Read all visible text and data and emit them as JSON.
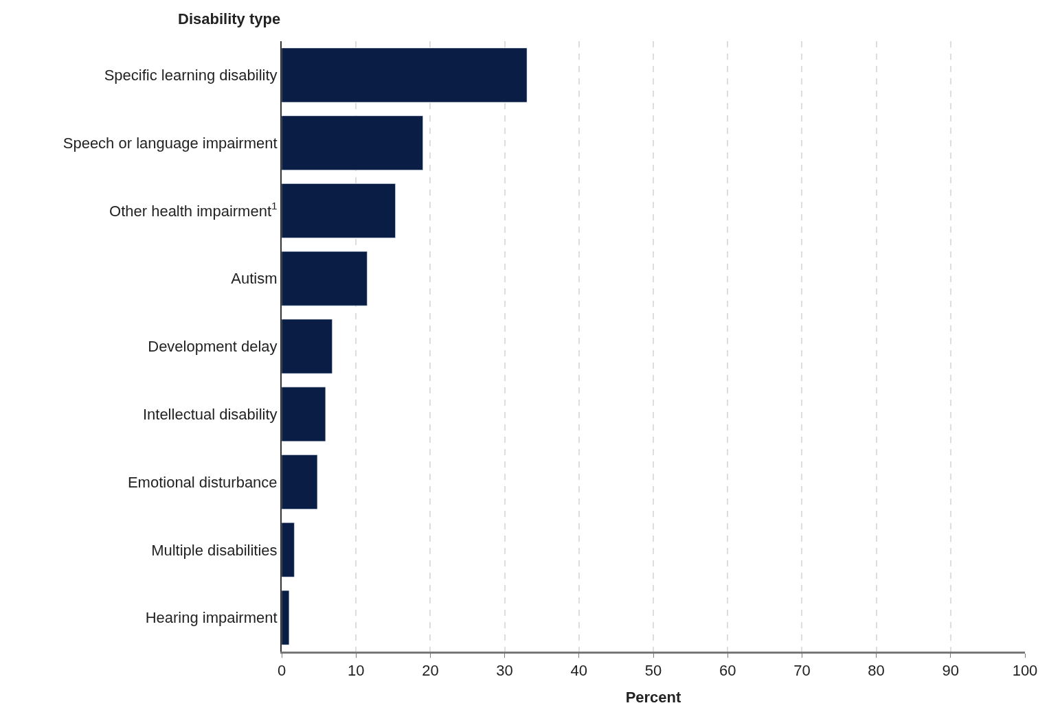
{
  "chart_data": {
    "type": "bar",
    "orientation": "horizontal",
    "ylabel": "Disability type",
    "xlabel": "Percent",
    "categories": [
      "Specific learning disability",
      "Speech or language impairment",
      "Other health impairment$^{1}$",
      "Autism",
      "Development delay",
      "Intellectual disability",
      "Emotional disturbance",
      "Multiple disabilities",
      "Hearing impairment"
    ],
    "values": [
      33,
      19,
      15.3,
      11.5,
      6.8,
      5.9,
      4.8,
      1.7,
      1.0
    ],
    "color": "#0a1d45",
    "xlim": [
      0,
      100
    ],
    "xticks": [
      0,
      10,
      20,
      30,
      40,
      50,
      60,
      70,
      80,
      90,
      100
    ],
    "grid": "x"
  }
}
